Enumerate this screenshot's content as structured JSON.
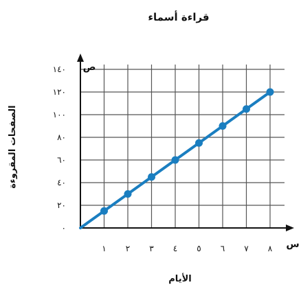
{
  "chart_data": {
    "type": "line",
    "title": "قراءة أسماء",
    "xlabel": "الأيام",
    "ylabel": "الصفحات المقروءة",
    "x_var": "س",
    "y_var": "ص",
    "x": [
      0,
      1,
      2,
      3,
      4,
      5,
      6,
      7,
      8
    ],
    "series": [
      {
        "values": [
          0,
          15,
          30,
          45,
          60,
          75,
          90,
          105,
          120
        ]
      }
    ],
    "xlim": [
      0,
      8.5
    ],
    "ylim": [
      0,
      140
    ],
    "x_ticks": [
      {
        "value": 1,
        "label": "١"
      },
      {
        "value": 2,
        "label": "٢"
      },
      {
        "value": 3,
        "label": "٣"
      },
      {
        "value": 4,
        "label": "٤"
      },
      {
        "value": 5,
        "label": "٥"
      },
      {
        "value": 6,
        "label": "٦"
      },
      {
        "value": 7,
        "label": "٧"
      },
      {
        "value": 8,
        "label": "٨"
      }
    ],
    "y_ticks": [
      {
        "value": 0,
        "label": "٠"
      },
      {
        "value": 20,
        "label": "٢٠"
      },
      {
        "value": 40,
        "label": "٤٠"
      },
      {
        "value": 60,
        "label": "٦٠"
      },
      {
        "value": 80,
        "label": "٨٠"
      },
      {
        "value": 100,
        "label": "١٠٠"
      },
      {
        "value": 120,
        "label": "١٢٠"
      },
      {
        "value": 140,
        "label": "١٤٠"
      }
    ],
    "grid": true,
    "colors": {
      "line": "#1a7ec0",
      "point": "#1a7ec0",
      "grid": "#555555",
      "axis": "#111111"
    }
  }
}
